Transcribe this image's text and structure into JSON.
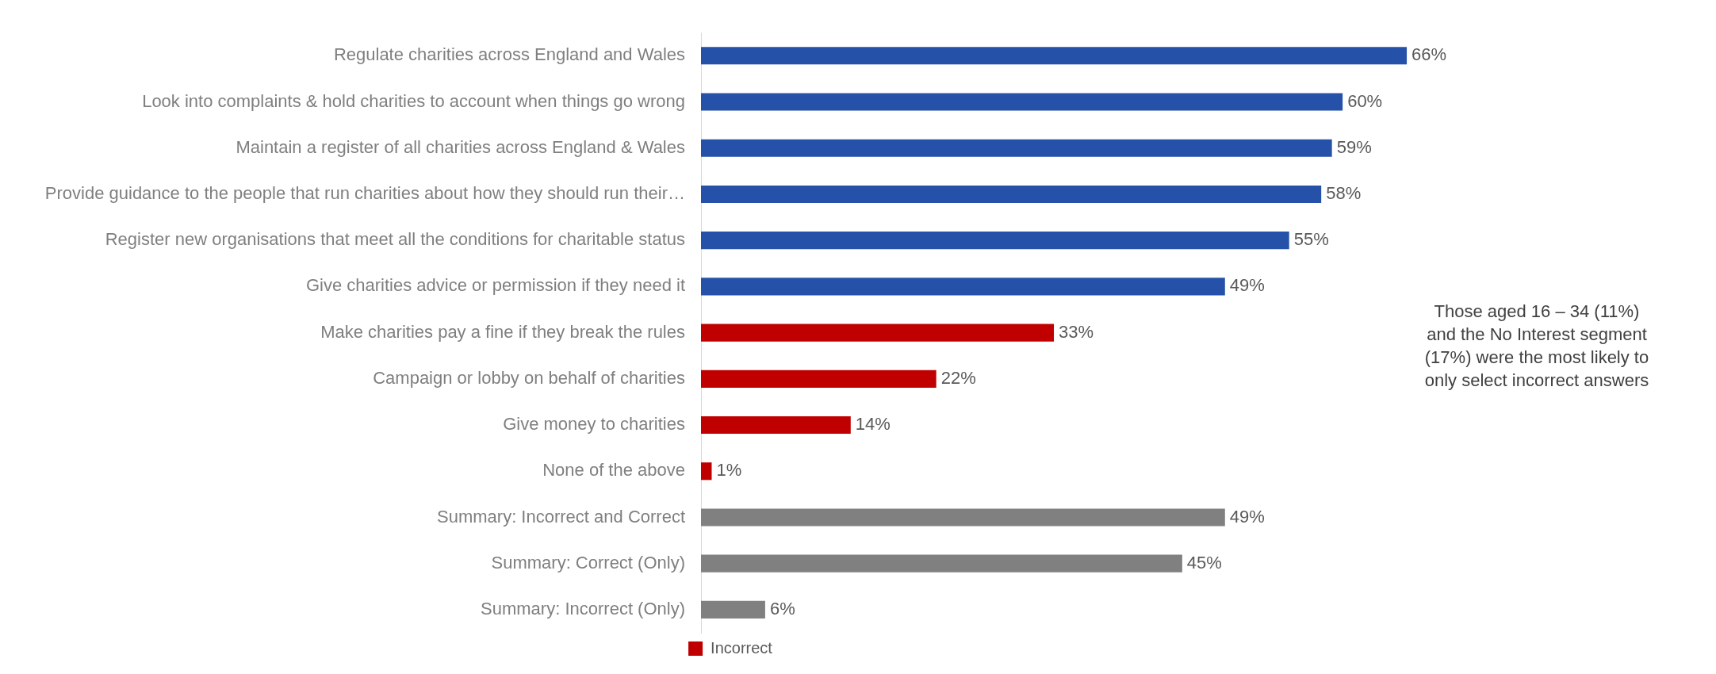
{
  "chart_data": {
    "type": "bar",
    "orientation": "horizontal",
    "categories": [
      "Regulate charities across England and Wales",
      "Look into complaints & hold charities to account when things go wrong",
      "Maintain a register of all charities across England & Wales",
      "Provide guidance to the people that run charities about how they should run their…",
      "Register new organisations that meet all the conditions for charitable status",
      "Give charities advice or permission if they need it",
      "Make charities pay a fine if they break the rules",
      "Campaign or lobby on behalf of charities",
      "Give money to charities",
      "None of the above",
      "Summary: Incorrect and Correct",
      "Summary: Correct (Only)",
      "Summary: Incorrect (Only)"
    ],
    "series": [
      {
        "color": "#2552a8",
        "values": [
          66,
          60,
          59,
          58,
          55,
          49,
          null,
          null,
          null,
          null,
          null,
          null,
          null
        ],
        "value_labels": [
          "66%",
          "60%",
          "59%",
          "58%",
          "55%",
          "49%",
          null,
          null,
          null,
          null,
          null,
          null,
          null
        ]
      },
      {
        "name": "Incorrect",
        "color": "#c00000",
        "values": [
          null,
          null,
          null,
          null,
          null,
          null,
          33,
          22,
          14,
          1,
          null,
          null,
          null
        ],
        "value_labels": [
          null,
          null,
          null,
          null,
          null,
          null,
          "33%",
          "22%",
          "14%",
          "1%",
          null,
          null,
          null
        ]
      },
      {
        "color": "#808080",
        "values": [
          null,
          null,
          null,
          null,
          null,
          null,
          null,
          null,
          null,
          null,
          49,
          45,
          6
        ],
        "value_labels": [
          null,
          null,
          null,
          null,
          null,
          null,
          null,
          null,
          null,
          null,
          "49%",
          "45%",
          "6%"
        ]
      }
    ],
    "grid": false,
    "legend": "bottom",
    "annotations": [
      "Those aged 16 – 34 (11%) and the No Interest segment (17%) were the most likely to only select incorrect answers"
    ]
  }
}
